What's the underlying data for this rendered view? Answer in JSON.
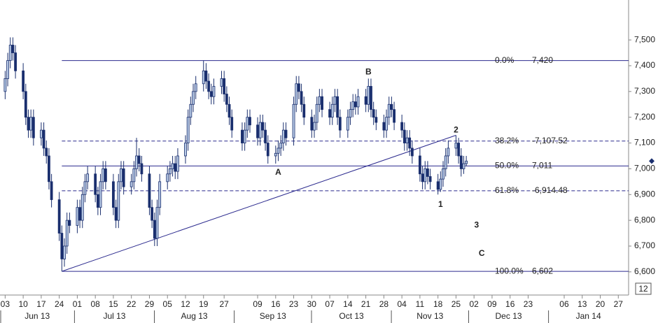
{
  "chart_data": {
    "type": "candlestick",
    "x": [
      "2013-06-03",
      "2013-06-04",
      "2013-06-05",
      "2013-06-06",
      "2013-06-07",
      "2013-06-10",
      "2013-06-11",
      "2013-06-12",
      "2013-06-13",
      "2013-06-14",
      "2013-06-17",
      "2013-06-18",
      "2013-06-19",
      "2013-06-20",
      "2013-06-21",
      "2013-06-24",
      "2013-06-25",
      "2013-06-26",
      "2013-06-27",
      "2013-06-28",
      "2013-07-01",
      "2013-07-02",
      "2013-07-03",
      "2013-07-04",
      "2013-07-05",
      "2013-07-08",
      "2013-07-09",
      "2013-07-10",
      "2013-07-11",
      "2013-07-12",
      "2013-07-15",
      "2013-07-16",
      "2013-07-17",
      "2013-07-18",
      "2013-07-19",
      "2013-07-22",
      "2013-07-23",
      "2013-07-24",
      "2013-07-25",
      "2013-07-26",
      "2013-07-29",
      "2013-07-30",
      "2013-07-31",
      "2013-08-01",
      "2013-08-02",
      "2013-08-05",
      "2013-08-06",
      "2013-08-07",
      "2013-08-08",
      "2013-08-09",
      "2013-08-12",
      "2013-08-13",
      "2013-08-14",
      "2013-08-15",
      "2013-08-16",
      "2013-08-19",
      "2013-08-20",
      "2013-08-21",
      "2013-08-22",
      "2013-08-23",
      "2013-08-26",
      "2013-08-27",
      "2013-08-28",
      "2013-08-29",
      "2013-08-30",
      "2013-09-03",
      "2013-09-04",
      "2013-09-05",
      "2013-09-06",
      "2013-09-09",
      "2013-09-10",
      "2013-09-11",
      "2013-09-12",
      "2013-09-13",
      "2013-09-16",
      "2013-09-17",
      "2013-09-18",
      "2013-09-19",
      "2013-09-20",
      "2013-09-23",
      "2013-09-24",
      "2013-09-25",
      "2013-09-26",
      "2013-09-27",
      "2013-09-30",
      "2013-10-01",
      "2013-10-02",
      "2013-10-03",
      "2013-10-04",
      "2013-10-07",
      "2013-10-08",
      "2013-10-09",
      "2013-10-10",
      "2013-10-11",
      "2013-10-14",
      "2013-10-15",
      "2013-10-16",
      "2013-10-17",
      "2013-10-18",
      "2013-10-21",
      "2013-10-22",
      "2013-10-23",
      "2013-10-24",
      "2013-10-25",
      "2013-10-28",
      "2013-10-29",
      "2013-10-30",
      "2013-10-31",
      "2013-11-01",
      "2013-11-04",
      "2013-11-05",
      "2013-11-06",
      "2013-11-07",
      "2013-11-08",
      "2013-11-11",
      "2013-11-12",
      "2013-11-13",
      "2013-11-14",
      "2013-11-15",
      "2013-11-18",
      "2013-11-19",
      "2013-11-20",
      "2013-11-21",
      "2013-11-22",
      "2013-11-25",
      "2013-11-26",
      "2013-11-27",
      "2013-11-28",
      "2013-11-29"
    ],
    "open": [
      7300,
      7350,
      7420,
      7480,
      7450,
      7380,
      7300,
      7200,
      7150,
      7200,
      7120,
      7150,
      7080,
      7050,
      6950,
      6880,
      6750,
      6650,
      6700,
      6800,
      6780,
      6850,
      6800,
      6900,
      6950,
      6980,
      6900,
      6850,
      6950,
      7000,
      6950,
      6850,
      6800,
      6950,
      7000,
      6930,
      6950,
      7000,
      7050,
      7020,
      6980,
      6850,
      6800,
      6730,
      6850,
      6950,
      6980,
      7000,
      7020,
      6990,
      7050,
      7100,
      7200,
      7250,
      7300,
      7330,
      7380,
      7340,
      7300,
      7280,
      7320,
      7350,
      7290,
      7250,
      7200,
      7150,
      7100,
      7150,
      7200,
      7170,
      7120,
      7180,
      7150,
      7100,
      7050,
      7060,
      7080,
      7100,
      7150,
      7120,
      7250,
      7330,
      7300,
      7250,
      7200,
      7150,
      7180,
      7250,
      7280,
      7230,
      7200,
      7250,
      7280,
      7200,
      7150,
      7200,
      7230,
      7260,
      7240,
      7280,
      7250,
      7320,
      7230,
      7200,
      7180,
      7150,
      7200,
      7250,
      7230,
      7180,
      7150,
      7100,
      7120,
      7080,
      7050,
      6980,
      6950,
      7000,
      6970,
      6950,
      6920,
      6960,
      7000,
      7050,
      7080,
      7100,
      7050,
      7000,
      7020
    ],
    "high": [
      7380,
      7450,
      7510,
      7510,
      7480,
      7410,
      7330,
      7230,
      7230,
      7230,
      7180,
      7180,
      7110,
      7080,
      6980,
      6910,
      6780,
      6730,
      6830,
      6830,
      6880,
      6880,
      6930,
      6980,
      7010,
      7010,
      6930,
      6980,
      7030,
      7030,
      6980,
      6880,
      6980,
      7030,
      7030,
      6980,
      7030,
      7120,
      7080,
      7050,
      7010,
      6880,
      6830,
      6880,
      6980,
      7010,
      7030,
      7050,
      7050,
      7080,
      7130,
      7230,
      7280,
      7330,
      7360,
      7420,
      7410,
      7370,
      7330,
      7350,
      7380,
      7380,
      7320,
      7280,
      7230,
      7180,
      7180,
      7230,
      7230,
      7200,
      7210,
      7210,
      7180,
      7130,
      7090,
      7110,
      7130,
      7180,
      7180,
      7280,
      7360,
      7360,
      7330,
      7280,
      7230,
      7210,
      7280,
      7310,
      7310,
      7260,
      7280,
      7310,
      7310,
      7230,
      7230,
      7260,
      7290,
      7290,
      7310,
      7310,
      7350,
      7350,
      7260,
      7230,
      7210,
      7230,
      7280,
      7280,
      7260,
      7210,
      7180,
      7150,
      7150,
      7110,
      7080,
      7010,
      7030,
      7030,
      7000,
      6980,
      6990,
      7030,
      7080,
      7110,
      7130,
      7120,
      7080,
      7050,
      7050
    ],
    "low": [
      7270,
      7320,
      7390,
      7420,
      7350,
      7270,
      7170,
      7120,
      7120,
      7090,
      7090,
      7050,
      7020,
      6920,
      6850,
      6720,
      6602,
      6620,
      6670,
      6750,
      6750,
      6770,
      6770,
      6870,
      6920,
      6870,
      6820,
      6820,
      6920,
      6920,
      6820,
      6770,
      6770,
      6920,
      6900,
      6900,
      6920,
      6970,
      6990,
      6950,
      6820,
      6770,
      6700,
      6700,
      6820,
      6920,
      6950,
      6970,
      6960,
      6960,
      7020,
      7070,
      7170,
      7220,
      7270,
      7300,
      7310,
      7270,
      7250,
      7250,
      7290,
      7260,
      7220,
      7170,
      7120,
      7070,
      7070,
      7120,
      7140,
      7090,
      7090,
      7120,
      7070,
      7020,
      7020,
      7030,
      7050,
      7070,
      7090,
      7090,
      7220,
      7270,
      7220,
      7170,
      7120,
      7120,
      7150,
      7220,
      7200,
      7170,
      7170,
      7220,
      7170,
      7120,
      7120,
      7170,
      7200,
      7210,
      7210,
      7220,
      7220,
      7200,
      7170,
      7150,
      7120,
      7120,
      7170,
      7200,
      7150,
      7120,
      7070,
      7070,
      7050,
      7020,
      6950,
      6920,
      6920,
      6940,
      6920,
      6900,
      6910,
      6930,
      6970,
      7020,
      7050,
      7020,
      6970,
      6980,
      7010
    ],
    "close": [
      7350,
      7420,
      7480,
      7450,
      7380,
      7300,
      7200,
      7150,
      7200,
      7120,
      7150,
      7080,
      7050,
      6950,
      6880,
      6750,
      6650,
      6700,
      6800,
      6780,
      6850,
      6800,
      6900,
      6950,
      6980,
      6900,
      6850,
      6950,
      7000,
      6950,
      6850,
      6800,
      6950,
      7000,
      6930,
      6950,
      7000,
      7050,
      7020,
      6980,
      6850,
      6800,
      6730,
      6850,
      6950,
      6980,
      7000,
      7020,
      6990,
      7050,
      7100,
      7200,
      7250,
      7300,
      7330,
      7380,
      7340,
      7300,
      7280,
      7320,
      7350,
      7290,
      7250,
      7200,
      7150,
      7100,
      7150,
      7200,
      7170,
      7120,
      7180,
      7150,
      7100,
      7050,
      7060,
      7080,
      7100,
      7150,
      7120,
      7250,
      7330,
      7300,
      7250,
      7200,
      7150,
      7180,
      7250,
      7280,
      7230,
      7200,
      7250,
      7280,
      7200,
      7150,
      7200,
      7230,
      7260,
      7240,
      7280,
      7250,
      7320,
      7230,
      7200,
      7180,
      7150,
      7200,
      7250,
      7230,
      7180,
      7150,
      7100,
      7120,
      7080,
      7050,
      6980,
      6950,
      7000,
      6970,
      6950,
      6920,
      6960,
      7000,
      7050,
      7080,
      7100,
      7050,
      7000,
      7020,
      7030
    ],
    "up_color": "#b8cae6",
    "down_color": "#1a2f6e",
    "xlim": [
      "2013-06-01",
      "2014-01-31"
    ],
    "xticks": [
      {
        "value": "2013-06-03",
        "label": "03"
      },
      {
        "value": "2013-06-10",
        "label": "10"
      },
      {
        "value": "2013-06-17",
        "label": "17"
      },
      {
        "value": "2013-06-24",
        "label": "24"
      },
      {
        "value": "2013-07-01",
        "label": "01"
      },
      {
        "value": "2013-07-08",
        "label": "08"
      },
      {
        "value": "2013-07-15",
        "label": "15"
      },
      {
        "value": "2013-07-22",
        "label": "22"
      },
      {
        "value": "2013-07-29",
        "label": "29"
      },
      {
        "value": "2013-08-05",
        "label": "05"
      },
      {
        "value": "2013-08-12",
        "label": "12"
      },
      {
        "value": "2013-08-19",
        "label": "19"
      },
      {
        "value": "2013-08-27",
        "label": "27"
      },
      {
        "value": "2013-09-09",
        "label": "09"
      },
      {
        "value": "2013-09-16",
        "label": "16"
      },
      {
        "value": "2013-09-23",
        "label": "23"
      },
      {
        "value": "2013-09-30",
        "label": "30"
      },
      {
        "value": "2013-10-07",
        "label": "07"
      },
      {
        "value": "2013-10-14",
        "label": "14"
      },
      {
        "value": "2013-10-21",
        "label": "21"
      },
      {
        "value": "2013-10-28",
        "label": "28"
      },
      {
        "value": "2013-11-04",
        "label": "04"
      },
      {
        "value": "2013-11-11",
        "label": "11"
      },
      {
        "value": "2013-11-18",
        "label": "18"
      },
      {
        "value": "2013-11-25",
        "label": "25"
      },
      {
        "value": "2013-12-02",
        "label": "02"
      },
      {
        "value": "2013-12-09",
        "label": "09"
      },
      {
        "value": "2013-12-16",
        "label": "16"
      },
      {
        "value": "2013-12-23",
        "label": "23"
      },
      {
        "value": "2014-01-06",
        "label": "06"
      },
      {
        "value": "2014-01-13",
        "label": "13"
      },
      {
        "value": "2014-01-20",
        "label": "20"
      },
      {
        "value": "2014-01-27",
        "label": "27"
      }
    ],
    "months": [
      {
        "value": "2013-06",
        "label": "Jun 13"
      },
      {
        "value": "2013-07",
        "label": "Jul 13"
      },
      {
        "value": "2013-08",
        "label": "Aug 13"
      },
      {
        "value": "2013-09",
        "label": "Sep 13"
      },
      {
        "value": "2013-10",
        "label": "Oct 13"
      },
      {
        "value": "2013-11",
        "label": "Nov 13"
      },
      {
        "value": "2013-12",
        "label": "Dec 13"
      },
      {
        "value": "2014-01",
        "label": "Jan 14"
      }
    ],
    "ylim": [
      6510,
      7655
    ],
    "yticks": [
      {
        "value": 6600,
        "label": "6,600"
      },
      {
        "value": 6700,
        "label": "6,700"
      },
      {
        "value": 6800,
        "label": "6,800"
      },
      {
        "value": 6900,
        "label": "6,900"
      },
      {
        "value": 7000,
        "label": "7,000"
      },
      {
        "value": 7100,
        "label": "7,100"
      },
      {
        "value": 7200,
        "label": "7,200"
      },
      {
        "value": 7300,
        "label": "7,300"
      },
      {
        "value": 7400,
        "label": "7,400"
      },
      {
        "value": 7500,
        "label": "7,500"
      }
    ],
    "fib_start": "2013-06-25",
    "fib_levels": [
      {
        "pct": "0.0%",
        "value": 7420,
        "label": "7,420",
        "dashed": false
      },
      {
        "pct": "38.2%",
        "value": 7107.52,
        "label": "-7,107.52",
        "dashed": true
      },
      {
        "pct": "50.0%",
        "value": 7011,
        "label": "7,011",
        "dashed": false
      },
      {
        "pct": "61.8%",
        "value": 6914.48,
        "label": "-6,914.48",
        "dashed": true
      },
      {
        "pct": "100.0%",
        "value": 6602,
        "label": "6,602",
        "dashed": false
      }
    ],
    "trendline": [
      {
        "x": "2013-06-25",
        "y": 6602
      },
      {
        "x": "2013-11-25",
        "y": 7130
      }
    ],
    "annotations": [
      {
        "text": "A",
        "x": "2013-09-17",
        "y": 6985
      },
      {
        "text": "B",
        "x": "2013-10-22",
        "y": 7375
      },
      {
        "text": "1",
        "x": "2013-11-19",
        "y": 6860
      },
      {
        "text": "2",
        "x": "2013-11-25",
        "y": 7150
      },
      {
        "text": "3",
        "x": "2013-12-03",
        "y": 6780
      },
      {
        "text": "C",
        "x": "2013-12-05",
        "y": 6670
      }
    ],
    "corner_label": "12",
    "line_color": "#2b2a8e",
    "fib_text_color": "#3b2ea4"
  }
}
